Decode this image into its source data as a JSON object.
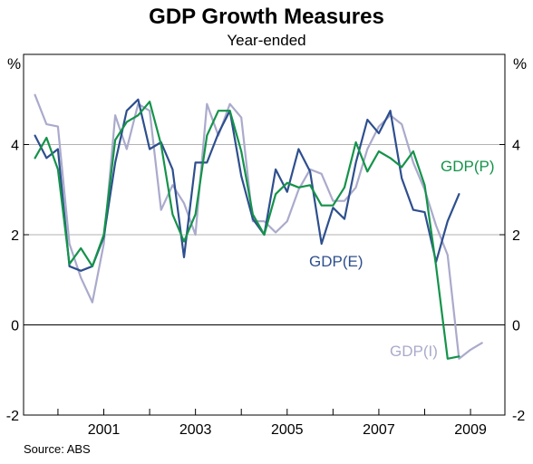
{
  "chart_data": {
    "type": "line",
    "title": "GDP Growth Measures",
    "subtitle": "Year-ended",
    "y_unit_left": "%",
    "y_unit_right": "%",
    "source": "Source: ABS",
    "ylim": [
      -2,
      6
    ],
    "yticks": [
      -2,
      0,
      2,
      4
    ],
    "ytick_labels": [
      "-2",
      "0",
      "2",
      "4"
    ],
    "xlim": [
      1999.25,
      2009.75
    ],
    "xticks": [
      2001,
      2003,
      2005,
      2007,
      2009
    ],
    "xtick_labels": [
      "2001",
      "2003",
      "2005",
      "2007",
      "2009"
    ],
    "grid": true,
    "series": [
      {
        "name": "GDP(I)",
        "color": "#aaaacc",
        "x": [
          1999.5,
          1999.75,
          2000.0,
          2000.25,
          2000.5,
          2000.75,
          2001.0,
          2001.25,
          2001.5,
          2001.75,
          2002.0,
          2002.25,
          2002.5,
          2002.75,
          2003.0,
          2003.25,
          2003.5,
          2003.75,
          2004.0,
          2004.25,
          2004.5,
          2004.75,
          2005.0,
          2005.25,
          2005.5,
          2005.75,
          2006.0,
          2006.25,
          2006.5,
          2006.75,
          2007.0,
          2007.25,
          2007.5,
          2007.75,
          2008.0,
          2008.25,
          2008.5,
          2008.75,
          2009.0,
          2009.25
        ],
        "values": [
          5.1,
          4.45,
          4.4,
          1.8,
          1.05,
          0.5,
          1.8,
          4.65,
          3.9,
          4.9,
          4.75,
          2.55,
          3.1,
          2.7,
          2.0,
          4.9,
          4.2,
          4.9,
          4.6,
          2.3,
          2.3,
          2.05,
          2.3,
          3.0,
          3.45,
          3.35,
          2.75,
          2.75,
          3.05,
          3.9,
          4.4,
          4.65,
          4.45,
          3.6,
          3.0,
          2.2,
          1.55,
          -0.75,
          -0.55,
          -0.4
        ]
      },
      {
        "name": "GDP(E)",
        "color": "#2e4f8e",
        "x": [
          1999.5,
          1999.75,
          2000.0,
          2000.25,
          2000.5,
          2000.75,
          2001.0,
          2001.25,
          2001.5,
          2001.75,
          2002.0,
          2002.25,
          2002.5,
          2002.75,
          2003.0,
          2003.25,
          2003.5,
          2003.75,
          2004.0,
          2004.25,
          2004.5,
          2004.75,
          2005.0,
          2005.25,
          2005.5,
          2005.75,
          2006.0,
          2006.25,
          2006.5,
          2006.75,
          2007.0,
          2007.25,
          2007.5,
          2007.75,
          2008.0,
          2008.25,
          2008.5,
          2008.75,
          2009.0,
          2009.25
        ],
        "values": [
          4.2,
          3.7,
          3.9,
          1.3,
          1.2,
          1.3,
          1.95,
          3.6,
          4.75,
          5.0,
          3.9,
          4.05,
          3.45,
          1.5,
          3.6,
          3.6,
          4.25,
          4.75,
          3.3,
          2.35,
          2.0,
          3.45,
          2.95,
          3.9,
          3.4,
          1.8,
          2.6,
          2.35,
          3.6,
          4.55,
          4.25,
          4.75,
          3.25,
          2.55,
          2.5,
          1.4,
          2.3,
          2.9,
          null,
          null
        ]
      },
      {
        "name": "GDP(P)",
        "color": "#14934a",
        "x": [
          1999.5,
          1999.75,
          2000.0,
          2000.25,
          2000.5,
          2000.75,
          2001.0,
          2001.25,
          2001.5,
          2001.75,
          2002.0,
          2002.25,
          2002.5,
          2002.75,
          2003.0,
          2003.25,
          2003.5,
          2003.75,
          2004.0,
          2004.25,
          2004.5,
          2004.75,
          2005.0,
          2005.25,
          2005.5,
          2005.75,
          2006.0,
          2006.25,
          2006.5,
          2006.75,
          2007.0,
          2007.25,
          2007.5,
          2007.75,
          2008.0,
          2008.25,
          2008.5,
          2008.75,
          2009.0,
          2009.25
        ],
        "values": [
          3.7,
          4.15,
          3.45,
          1.35,
          1.7,
          1.3,
          2.0,
          4.1,
          4.5,
          4.65,
          4.95,
          4.0,
          2.45,
          1.85,
          2.45,
          4.2,
          4.75,
          4.75,
          3.85,
          2.45,
          2.0,
          2.9,
          3.15,
          3.05,
          3.1,
          2.65,
          2.65,
          3.05,
          4.05,
          3.4,
          3.85,
          3.7,
          3.5,
          3.85,
          3.1,
          1.3,
          -0.75,
          -0.7,
          null,
          null
        ]
      }
    ]
  }
}
